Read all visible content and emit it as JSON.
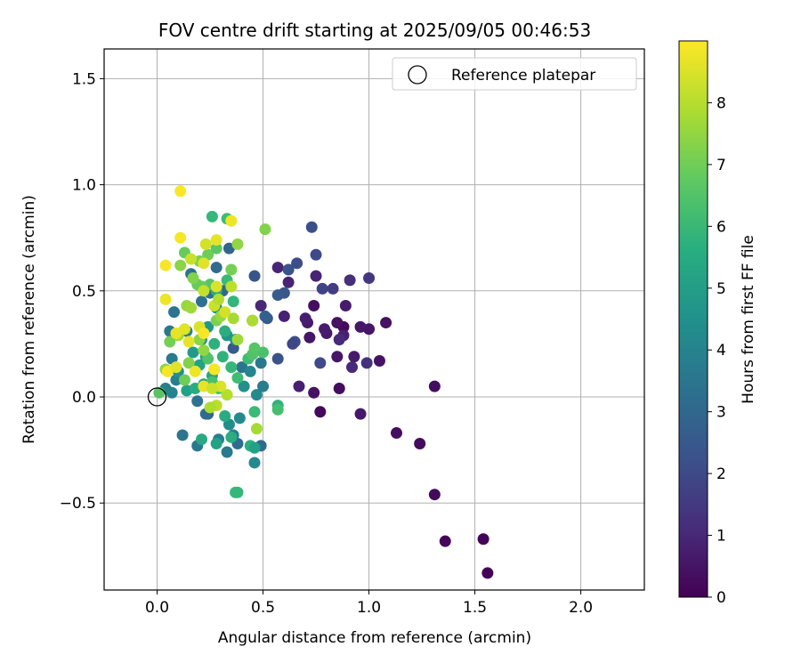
{
  "chart_data": {
    "type": "scatter",
    "title": "FOV centre drift starting at 2025/09/05 00:46:53",
    "xlabel": "Angular distance from reference (arcmin)",
    "ylabel": "Rotation from reference (arcmin)",
    "xlim": [
      -0.25,
      2.3
    ],
    "ylim": [
      -0.91,
      1.64
    ],
    "xticks": [
      0.0,
      0.5,
      1.0,
      1.5,
      2.0
    ],
    "xtick_labels": [
      "0.0",
      "0.5",
      "1.0",
      "1.5",
      "2.0"
    ],
    "yticks": [
      -0.5,
      0.0,
      0.5,
      1.0,
      1.5
    ],
    "ytick_labels": [
      "−0.5",
      "0.0",
      "0.5",
      "1.0",
      "1.5"
    ],
    "grid": true,
    "legend": {
      "placement": "top-right",
      "entries": [
        "Reference platepar"
      ]
    },
    "reference_point": {
      "x": 0.0,
      "y": 0.0,
      "label": "Reference platepar",
      "marker": "open-circle"
    },
    "colorbar": {
      "label": "Hours from first FF file",
      "colormap": "viridis",
      "range": [
        0,
        9
      ],
      "ticks": [
        0,
        1,
        2,
        3,
        4,
        5,
        6,
        7,
        8
      ],
      "tick_labels": [
        "0",
        "1",
        "2",
        "3",
        "4",
        "5",
        "6",
        "7",
        "8"
      ]
    },
    "points": [
      {
        "x": 1.56,
        "y": -0.83,
        "h": 0.05
      },
      {
        "x": 1.54,
        "y": -0.67,
        "h": 0.1
      },
      {
        "x": 1.36,
        "y": -0.68,
        "h": 0.15
      },
      {
        "x": 1.31,
        "y": -0.46,
        "h": 0.2
      },
      {
        "x": 1.24,
        "y": -0.22,
        "h": 0.25
      },
      {
        "x": 1.13,
        "y": -0.17,
        "h": 0.3
      },
      {
        "x": 1.31,
        "y": 0.05,
        "h": 0.35
      },
      {
        "x": 1.08,
        "y": 0.35,
        "h": 0.4
      },
      {
        "x": 1.05,
        "y": 0.17,
        "h": 0.45
      },
      {
        "x": 1.0,
        "y": 0.32,
        "h": 0.5
      },
      {
        "x": 0.96,
        "y": 0.33,
        "h": 0.55
      },
      {
        "x": 0.96,
        "y": -0.08,
        "h": 0.6
      },
      {
        "x": 0.93,
        "y": 0.19,
        "h": 0.65
      },
      {
        "x": 0.89,
        "y": 0.43,
        "h": 0.7
      },
      {
        "x": 0.88,
        "y": 0.33,
        "h": 0.2
      },
      {
        "x": 0.86,
        "y": 0.04,
        "h": 0.3
      },
      {
        "x": 0.85,
        "y": 0.35,
        "h": 0.4
      },
      {
        "x": 0.85,
        "y": 0.19,
        "h": 0.5
      },
      {
        "x": 0.8,
        "y": 0.3,
        "h": 0.6
      },
      {
        "x": 0.79,
        "y": 0.32,
        "h": 0.7
      },
      {
        "x": 0.77,
        "y": -0.07,
        "h": 0.2
      },
      {
        "x": 0.74,
        "y": 0.43,
        "h": 0.35
      },
      {
        "x": 0.74,
        "y": 0.02,
        "h": 0.45
      },
      {
        "x": 0.72,
        "y": 0.28,
        "h": 0.55
      },
      {
        "x": 0.71,
        "y": 0.35,
        "h": 0.65
      },
      {
        "x": 0.7,
        "y": 0.37,
        "h": 0.75
      },
      {
        "x": 0.67,
        "y": 0.05,
        "h": 0.8
      },
      {
        "x": 0.6,
        "y": 0.38,
        "h": 0.85
      },
      {
        "x": 0.62,
        "y": 0.54,
        "h": 0.9
      },
      {
        "x": 0.57,
        "y": 0.61,
        "h": 0.95
      },
      {
        "x": 0.49,
        "y": 0.43,
        "h": 1.0
      },
      {
        "x": 0.75,
        "y": 0.57,
        "h": 0.9
      },
      {
        "x": 0.88,
        "y": 0.29,
        "h": 0.8
      },
      {
        "x": 0.92,
        "y": 0.14,
        "h": 1.1
      },
      {
        "x": 0.91,
        "y": 0.55,
        "h": 1.2
      },
      {
        "x": 0.99,
        "y": 0.16,
        "h": 1.3
      },
      {
        "x": 1.0,
        "y": 0.56,
        "h": 1.4
      },
      {
        "x": 0.86,
        "y": 0.27,
        "h": 1.1
      },
      {
        "x": 0.73,
        "y": 0.8,
        "h": 2.2
      },
      {
        "x": 0.75,
        "y": 0.67,
        "h": 2.0
      },
      {
        "x": 0.78,
        "y": 0.51,
        "h": 1.8
      },
      {
        "x": 0.83,
        "y": 0.51,
        "h": 1.6
      },
      {
        "x": 0.66,
        "y": 0.63,
        "h": 2.1
      },
      {
        "x": 0.62,
        "y": 0.6,
        "h": 2.3
      },
      {
        "x": 0.6,
        "y": 0.49,
        "h": 2.4
      },
      {
        "x": 0.57,
        "y": 0.48,
        "h": 2.5
      },
      {
        "x": 0.65,
        "y": 0.26,
        "h": 2.2
      },
      {
        "x": 0.64,
        "y": 0.25,
        "h": 1.9
      },
      {
        "x": 0.57,
        "y": 0.18,
        "h": 2.3
      },
      {
        "x": 0.52,
        "y": 0.37,
        "h": 2.6
      },
      {
        "x": 0.51,
        "y": 0.38,
        "h": 2.7
      },
      {
        "x": 0.46,
        "y": 0.57,
        "h": 2.4
      },
      {
        "x": 0.45,
        "y": 0.36,
        "h": 2.8
      },
      {
        "x": 0.36,
        "y": 0.23,
        "h": 2.5
      },
      {
        "x": 0.77,
        "y": 0.16,
        "h": 2.0
      },
      {
        "x": 0.34,
        "y": 0.7,
        "h": 2.9
      },
      {
        "x": 0.31,
        "y": 0.5,
        "h": 3.0
      },
      {
        "x": 0.28,
        "y": 0.61,
        "h": 3.1
      },
      {
        "x": 0.25,
        "y": 0.49,
        "h": 3.2
      },
      {
        "x": 0.21,
        "y": 0.45,
        "h": 3.3
      },
      {
        "x": 0.16,
        "y": 0.58,
        "h": 3.4
      },
      {
        "x": 0.08,
        "y": 0.4,
        "h": 3.5
      },
      {
        "x": 0.06,
        "y": 0.31,
        "h": 3.6
      },
      {
        "x": 0.07,
        "y": 0.18,
        "h": 3.7
      },
      {
        "x": 0.09,
        "y": 0.08,
        "h": 3.8
      },
      {
        "x": 0.04,
        "y": 0.04,
        "h": 3.9
      },
      {
        "x": 0.07,
        "y": 0.02,
        "h": 4.0
      },
      {
        "x": 0.12,
        "y": -0.18,
        "h": 3.5
      },
      {
        "x": 0.19,
        "y": -0.23,
        "h": 3.6
      },
      {
        "x": 0.33,
        "y": -0.26,
        "h": 3.7
      },
      {
        "x": 0.29,
        "y": -0.2,
        "h": 3.8
      },
      {
        "x": 0.38,
        "y": -0.22,
        "h": 3.2
      },
      {
        "x": 0.36,
        "y": -0.18,
        "h": 3.9
      },
      {
        "x": 0.49,
        "y": -0.23,
        "h": 3.1
      },
      {
        "x": 0.46,
        "y": -0.31,
        "h": 4.2
      },
      {
        "x": 0.39,
        "y": -0.1,
        "h": 4.3
      },
      {
        "x": 0.34,
        "y": -0.13,
        "h": 4.4
      },
      {
        "x": 0.23,
        "y": -0.08,
        "h": 3.3
      },
      {
        "x": 0.19,
        "y": -0.02,
        "h": 3.4
      },
      {
        "x": 0.24,
        "y": -0.08,
        "h": 3.0
      },
      {
        "x": 0.4,
        "y": 0.14,
        "h": 3.5
      },
      {
        "x": 0.49,
        "y": 0.16,
        "h": 3.6
      },
      {
        "x": 0.44,
        "y": 0.12,
        "h": 4.1
      },
      {
        "x": 0.47,
        "y": 0.01,
        "h": 4.3
      },
      {
        "x": 0.5,
        "y": 0.05,
        "h": 3.8
      },
      {
        "x": 0.41,
        "y": 0.05,
        "h": 4.5
      },
      {
        "x": 0.37,
        "y": 0.27,
        "h": 4.2
      },
      {
        "x": 0.33,
        "y": 0.29,
        "h": 4.7
      },
      {
        "x": 0.28,
        "y": 0.42,
        "h": 4.6
      },
      {
        "x": 0.24,
        "y": 0.33,
        "h": 4.8
      },
      {
        "x": 0.21,
        "y": 0.27,
        "h": 4.4
      },
      {
        "x": 0.17,
        "y": 0.21,
        "h": 4.9
      },
      {
        "x": 0.14,
        "y": 0.31,
        "h": 4.0
      },
      {
        "x": 0.1,
        "y": 0.12,
        "h": 4.5
      },
      {
        "x": 0.14,
        "y": 0.03,
        "h": 5.1
      },
      {
        "x": 0.2,
        "y": 0.15,
        "h": 5.2
      },
      {
        "x": 0.23,
        "y": 0.19,
        "h": 5.0
      },
      {
        "x": 0.26,
        "y": 0.1,
        "h": 5.3
      },
      {
        "x": 0.22,
        "y": 0.06,
        "h": 5.4
      },
      {
        "x": 0.18,
        "y": 0.04,
        "h": 5.5
      },
      {
        "x": 0.28,
        "y": -0.22,
        "h": 5.2
      },
      {
        "x": 0.21,
        "y": -0.2,
        "h": 5.4
      },
      {
        "x": 0.32,
        "y": -0.09,
        "h": 5.5
      },
      {
        "x": 0.35,
        "y": -0.19,
        "h": 5.6
      },
      {
        "x": 0.44,
        "y": -0.23,
        "h": 5.7
      },
      {
        "x": 0.46,
        "y": -0.24,
        "h": 5.1
      },
      {
        "x": 0.38,
        "y": -0.45,
        "h": 5.9
      },
      {
        "x": 0.37,
        "y": -0.45,
        "h": 6.0
      },
      {
        "x": 0.46,
        "y": -0.07,
        "h": 6.1
      },
      {
        "x": 0.57,
        "y": -0.04,
        "h": 5.8
      },
      {
        "x": 0.57,
        "y": -0.06,
        "h": 6.3
      },
      {
        "x": 0.43,
        "y": 0.18,
        "h": 6.2
      },
      {
        "x": 0.5,
        "y": 0.21,
        "h": 6.4
      },
      {
        "x": 0.45,
        "y": 0.2,
        "h": 6.5
      },
      {
        "x": 0.46,
        "y": 0.23,
        "h": 6.6
      },
      {
        "x": 0.38,
        "y": 0.09,
        "h": 6.2
      },
      {
        "x": 0.35,
        "y": 0.14,
        "h": 6.0
      },
      {
        "x": 0.31,
        "y": 0.19,
        "h": 5.8
      },
      {
        "x": 0.29,
        "y": 0.04,
        "h": 6.3
      },
      {
        "x": 0.26,
        "y": 0.07,
        "h": 6.4
      },
      {
        "x": 0.24,
        "y": 0.18,
        "h": 6.5
      },
      {
        "x": 0.27,
        "y": 0.25,
        "h": 5.7
      },
      {
        "x": 0.32,
        "y": 0.31,
        "h": 5.6
      },
      {
        "x": 0.36,
        "y": 0.45,
        "h": 5.9
      },
      {
        "x": 0.33,
        "y": 0.55,
        "h": 6.1
      },
      {
        "x": 0.28,
        "y": 0.5,
        "h": 5.5
      },
      {
        "x": 0.25,
        "y": 0.53,
        "h": 6.6
      },
      {
        "x": 0.21,
        "y": 0.52,
        "h": 6.8
      },
      {
        "x": 0.19,
        "y": 0.53,
        "h": 6.9
      },
      {
        "x": 0.26,
        "y": 0.85,
        "h": 6.0
      },
      {
        "x": 0.33,
        "y": 0.84,
        "h": 6.2
      },
      {
        "x": 0.35,
        "y": 0.6,
        "h": 7.1
      },
      {
        "x": 0.38,
        "y": 0.72,
        "h": 7.5
      },
      {
        "x": 0.28,
        "y": 0.7,
        "h": 6.7
      },
      {
        "x": 0.24,
        "y": 0.67,
        "h": 7.0
      },
      {
        "x": 0.2,
        "y": 0.64,
        "h": 7.2
      },
      {
        "x": 0.17,
        "y": 0.56,
        "h": 7.3
      },
      {
        "x": 0.13,
        "y": 0.68,
        "h": 6.9
      },
      {
        "x": 0.11,
        "y": 0.62,
        "h": 7.4
      },
      {
        "x": 0.14,
        "y": 0.43,
        "h": 7.6
      },
      {
        "x": 0.16,
        "y": 0.42,
        "h": 7.7
      },
      {
        "x": 0.1,
        "y": 0.29,
        "h": 7.8
      },
      {
        "x": 0.06,
        "y": 0.26,
        "h": 7.1
      },
      {
        "x": 0.04,
        "y": 0.13,
        "h": 7.5
      },
      {
        "x": 0.01,
        "y": 0.02,
        "h": 6.6
      },
      {
        "x": 0.13,
        "y": 0.08,
        "h": 7.0
      },
      {
        "x": 0.15,
        "y": 0.16,
        "h": 7.3
      },
      {
        "x": 0.2,
        "y": 0.27,
        "h": 7.4
      },
      {
        "x": 0.22,
        "y": 0.22,
        "h": 7.5
      },
      {
        "x": 0.28,
        "y": 0.36,
        "h": 7.2
      },
      {
        "x": 0.3,
        "y": 0.38,
        "h": 7.6
      },
      {
        "x": 0.36,
        "y": 0.37,
        "h": 7.8
      },
      {
        "x": 0.38,
        "y": 0.27,
        "h": 7.7
      },
      {
        "x": 0.45,
        "y": 0.36,
        "h": 7.9
      },
      {
        "x": 0.51,
        "y": 0.79,
        "h": 7.3
      },
      {
        "x": 0.47,
        "y": -0.15,
        "h": 7.8
      },
      {
        "x": 0.33,
        "y": 0.01,
        "h": 8.0
      },
      {
        "x": 0.28,
        "y": -0.04,
        "h": 8.1
      },
      {
        "x": 0.25,
        "y": -0.05,
        "h": 7.9
      },
      {
        "x": 0.27,
        "y": 0.13,
        "h": 8.2
      },
      {
        "x": 0.27,
        "y": 0.43,
        "h": 8.3
      },
      {
        "x": 0.29,
        "y": 0.46,
        "h": 8.0
      },
      {
        "x": 0.32,
        "y": 0.4,
        "h": 8.4
      },
      {
        "x": 0.35,
        "y": 0.52,
        "h": 8.1
      },
      {
        "x": 0.28,
        "y": 0.52,
        "h": 8.5
      },
      {
        "x": 0.22,
        "y": 0.5,
        "h": 8.2
      },
      {
        "x": 0.16,
        "y": 0.65,
        "h": 8.3
      },
      {
        "x": 0.22,
        "y": 0.63,
        "h": 8.6
      },
      {
        "x": 0.23,
        "y": 0.72,
        "h": 8.4
      },
      {
        "x": 0.28,
        "y": 0.74,
        "h": 8.7
      },
      {
        "x": 0.35,
        "y": 0.83,
        "h": 8.8
      },
      {
        "x": 0.11,
        "y": 0.75,
        "h": 8.9
      },
      {
        "x": 0.11,
        "y": 0.97,
        "h": 8.95
      },
      {
        "x": 0.04,
        "y": 0.62,
        "h": 8.9
      },
      {
        "x": 0.04,
        "y": 0.46,
        "h": 8.8
      },
      {
        "x": 0.09,
        "y": 0.3,
        "h": 8.7
      },
      {
        "x": 0.13,
        "y": 0.32,
        "h": 8.6
      },
      {
        "x": 0.15,
        "y": 0.26,
        "h": 8.7
      },
      {
        "x": 0.2,
        "y": 0.33,
        "h": 8.5
      },
      {
        "x": 0.22,
        "y": 0.3,
        "h": 8.9
      },
      {
        "x": 0.18,
        "y": 0.12,
        "h": 8.8
      },
      {
        "x": 0.05,
        "y": 0.12,
        "h": 8.9
      },
      {
        "x": 0.09,
        "y": 0.14,
        "h": 8.6
      },
      {
        "x": 0.22,
        "y": 0.05,
        "h": 8.7
      },
      {
        "x": 0.27,
        "y": 0.13,
        "h": 8.9
      },
      {
        "x": 0.3,
        "y": 0.05,
        "h": 8.5
      },
      {
        "x": 0.26,
        "y": 0.04,
        "h": 8.3
      }
    ]
  }
}
